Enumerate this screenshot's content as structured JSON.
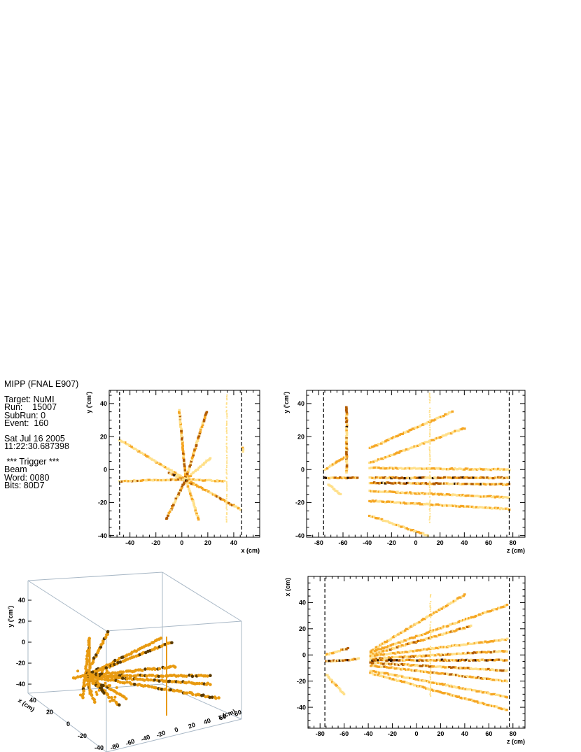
{
  "info": {
    "experiment": "MIPP (FNAL E907)",
    "target": "Target: NuMI",
    "run": "Run:    15007",
    "subrun": "SubRun: 0",
    "event": "Event:  160",
    "date": "Sat Jul 16 2005",
    "time": "11:22:30.687398",
    "trigger_header": " *** Trigger ***",
    "trigger_name": "Beam",
    "word": "Word: 0080",
    "bits": "Bits: 80D7"
  },
  "colors": {
    "hit_light": "#ffe08a",
    "hit_mid": "#f5a623",
    "hit_dark": "#b35c00",
    "hit_core": "#2a1200",
    "frame3d": "#a9b8c6"
  },
  "chart_data": [
    {
      "id": "xy-view",
      "type": "heatmap",
      "xlabel": "x (cm)",
      "ylabel": "y ('cm')",
      "xlim": [
        -56,
        60
      ],
      "ylim": [
        -41,
        48
      ],
      "xticks": [
        -40,
        -20,
        0,
        20,
        40
      ],
      "yticks": [
        -40,
        -20,
        0,
        20,
        40
      ],
      "dashed_x": [
        -48,
        46
      ],
      "tracks": [
        {
          "from": [
            3,
            -6
          ],
          "to": [
            -2,
            36
          ],
          "weight": 0.7
        },
        {
          "from": [
            3,
            -6
          ],
          "to": [
            19,
            35
          ],
          "weight": 0.7
        },
        {
          "from": [
            3,
            -6
          ],
          "to": [
            -12,
            -30
          ],
          "weight": 0.8
        },
        {
          "from": [
            3,
            -6
          ],
          "to": [
            13,
            -30
          ],
          "weight": 0.5
        },
        {
          "from": [
            3,
            -6
          ],
          "to": [
            -48,
            -7
          ],
          "weight": 0.6
        },
        {
          "from": [
            3,
            -6
          ],
          "to": [
            33,
            -7
          ],
          "weight": 0.5
        },
        {
          "from": [
            3,
            -6
          ],
          "to": [
            45,
            -24
          ],
          "weight": 0.6
        },
        {
          "from": [
            3,
            -6
          ],
          "to": [
            -48,
            18
          ],
          "weight": 0.4
        },
        {
          "from": [
            3,
            -6
          ],
          "to": [
            22,
            7
          ],
          "weight": 0.3
        },
        {
          "from": [
            -10,
            -2
          ],
          "to": [
            12,
            -10
          ],
          "weight": 0.9
        },
        {
          "from": [
            35,
            46
          ],
          "to": [
            35,
            -32
          ],
          "weight": 0.25
        },
        {
          "from": [
            47,
            13
          ],
          "to": [
            47,
            11
          ],
          "weight": 0.4
        }
      ]
    },
    {
      "id": "zy-view",
      "type": "heatmap",
      "xlabel": "z (cm)",
      "ylabel": "y ('cm')",
      "xlim": [
        -90,
        90
      ],
      "ylim": [
        -41,
        48
      ],
      "xticks": [
        -80,
        -60,
        -40,
        -20,
        0,
        20,
        40,
        60,
        80
      ],
      "yticks": [
        -40,
        -20,
        0,
        20,
        40
      ],
      "dashed_x": [
        -76,
        77
      ],
      "tracks": [
        {
          "from": [
            -57,
            38
          ],
          "to": [
            -57,
            -2
          ],
          "weight": 0.8
        },
        {
          "from": [
            -75,
            0
          ],
          "to": [
            -57,
            8
          ],
          "weight": 0.5
        },
        {
          "from": [
            -75,
            -5
          ],
          "to": [
            -48,
            -5
          ],
          "weight": 0.9
        },
        {
          "from": [
            -72,
            -9
          ],
          "to": [
            -62,
            -15
          ],
          "weight": 0.3
        },
        {
          "from": [
            -38,
            13
          ],
          "to": [
            30,
            35
          ],
          "weight": 0.5
        },
        {
          "from": [
            -38,
            4
          ],
          "to": [
            40,
            25
          ],
          "weight": 0.5
        },
        {
          "from": [
            -38,
            -5
          ],
          "to": [
            77,
            -5
          ],
          "weight": 0.9
        },
        {
          "from": [
            -38,
            -8
          ],
          "to": [
            77,
            -9
          ],
          "weight": 0.8
        },
        {
          "from": [
            -38,
            -13
          ],
          "to": [
            77,
            -17
          ],
          "weight": 0.5
        },
        {
          "from": [
            -38,
            -19
          ],
          "to": [
            77,
            -24
          ],
          "weight": 0.5
        },
        {
          "from": [
            -38,
            -28
          ],
          "to": [
            10,
            -40
          ],
          "weight": 0.4
        },
        {
          "from": [
            -38,
            1
          ],
          "to": [
            77,
            0
          ],
          "weight": 0.4
        },
        {
          "from": [
            12,
            46
          ],
          "to": [
            12,
            -32
          ],
          "weight": 0.25
        }
      ]
    },
    {
      "id": "zx-view",
      "type": "heatmap",
      "xlabel": "z (cm)",
      "ylabel": "x (cm)",
      "xlim": [
        -90,
        90
      ],
      "ylim": [
        -56,
        60
      ],
      "xticks": [
        -80,
        -60,
        -40,
        -20,
        0,
        20,
        40,
        60,
        80
      ],
      "yticks": [
        -40,
        -20,
        0,
        20,
        40
      ],
      "dashed_x": [
        -76,
        77
      ],
      "tracks": [
        {
          "from": [
            -75,
            -5
          ],
          "to": [
            -48,
            -3
          ],
          "weight": 0.9
        },
        {
          "from": [
            -75,
            0
          ],
          "to": [
            -57,
            5
          ],
          "weight": 0.6
        },
        {
          "from": [
            -75,
            -15
          ],
          "to": [
            -60,
            -30
          ],
          "weight": 0.3
        },
        {
          "from": [
            -38,
            3
          ],
          "to": [
            40,
            46
          ],
          "weight": 0.5
        },
        {
          "from": [
            -38,
            2
          ],
          "to": [
            75,
            38
          ],
          "weight": 0.5
        },
        {
          "from": [
            -38,
            0
          ],
          "to": [
            45,
            22
          ],
          "weight": 0.6
        },
        {
          "from": [
            -38,
            -1
          ],
          "to": [
            75,
            12
          ],
          "weight": 0.5
        },
        {
          "from": [
            -38,
            -3
          ],
          "to": [
            75,
            3
          ],
          "weight": 0.6
        },
        {
          "from": [
            -38,
            -4
          ],
          "to": [
            75,
            -4
          ],
          "weight": 0.9
        },
        {
          "from": [
            -38,
            -6
          ],
          "to": [
            75,
            -12
          ],
          "weight": 0.7
        },
        {
          "from": [
            -38,
            -8
          ],
          "to": [
            75,
            -20
          ],
          "weight": 0.6
        },
        {
          "from": [
            -38,
            -12
          ],
          "to": [
            75,
            -32
          ],
          "weight": 0.5
        },
        {
          "from": [
            -38,
            -14
          ],
          "to": [
            75,
            -42
          ],
          "weight": 0.5
        },
        {
          "from": [
            12,
            46
          ],
          "to": [
            12,
            -32
          ],
          "weight": 0.2
        }
      ]
    },
    {
      "id": "3d-view",
      "type": "scatter",
      "xlabel": "x (cm)",
      "ylabel": "y ('cm')",
      "zlabel": "z (cm)",
      "yticks": [
        "40",
        "20",
        "0",
        "-20",
        "-40"
      ],
      "xticks": [
        "-40",
        "-20",
        "0",
        "20",
        "40"
      ],
      "zticks": [
        "-80",
        "-60",
        "-40",
        "-20",
        "0",
        "20",
        "40",
        "60",
        "80"
      ]
    }
  ]
}
